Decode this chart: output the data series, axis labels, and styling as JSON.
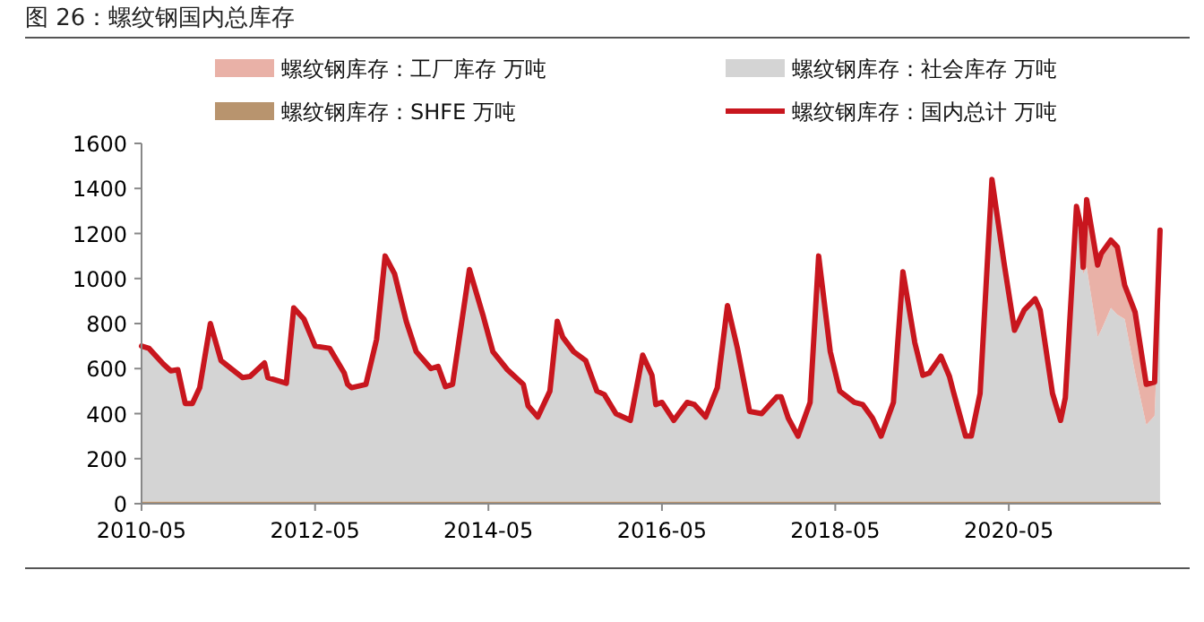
{
  "chart_data": {
    "type": "area",
    "stacked": true,
    "title": "图 26：螺纹钢国内总库存",
    "legend": "top",
    "grid": false,
    "marker": "none",
    "x": [
      "2010-05",
      "2010-06",
      "2010-08",
      "2010-09",
      "2010-10",
      "2010-11",
      "2010-12",
      "2011-01",
      "2011-02-15",
      "2011-04",
      "2011-07",
      "2011-08",
      "2011-10",
      "2011-10-15",
      "2012-01",
      "2012-02",
      "2012-03-15",
      "2012-05",
      "2012-07",
      "2012-09",
      "2012-09-15",
      "2012-10",
      "2012-12",
      "2013-01-15",
      "2013-02-20",
      "2013-04",
      "2013-05-20",
      "2013-07",
      "2013-09",
      "2013-10",
      "2013-11",
      "2013-12",
      "2014-02-10",
      "2014-04-10",
      "2014-05-20",
      "2014-07-20",
      "2014-09-25",
      "2014-10-15",
      "2014-11-25",
      "2015-01-15",
      "2015-02-15",
      "2015-03-10",
      "2015-04-25",
      "2015-06-15",
      "2015-08",
      "2015-09-01",
      "2015-10-20",
      "2015-12-20",
      "2016-02-10",
      "2016-03-20",
      "2016-04-05",
      "2016-05",
      "2016-06-20",
      "2016-08-15",
      "2016-09-15",
      "2016-11",
      "2016-12-20",
      "2017-02",
      "2017-03-15",
      "2017-05-05",
      "2017-06-25",
      "2017-08-28",
      "2017-09-15",
      "2017-10-15",
      "2017-11-25",
      "2018-01-15",
      "2018-02-20",
      "2018-04-10",
      "2018-05-20",
      "2018-07-20",
      "2018-08-25",
      "2018-10-05",
      "2018-11-10",
      "2019-01",
      "2019-02-10",
      "2019-04",
      "2019-05-05",
      "2019-06-01",
      "2019-07-20",
      "2019-08-25",
      "2019-09-10",
      "2019-11",
      "2019-11-25",
      "2020-01",
      "2020-02-20",
      "2020-04-10",
      "2020-05-25",
      "2020-07-05",
      "2020-08-20",
      "2020-09-10",
      "2020-11",
      "2020-12-05",
      "2020-12-25",
      "2021-02-10",
      "2021-03-01",
      "2021-03-10",
      "2021-03-25",
      "2021-05-10",
      "2021-05-25",
      "2021-07-05",
      "2021-08-01",
      "2021-09",
      "2021-10-15",
      "2021-12",
      "2022-01-05",
      "2022-01-28"
    ],
    "series": [
      {
        "name": "螺纹钢库存：SHFE 万吨",
        "color": "#b8946e",
        "values": [
          10,
          10,
          10,
          10,
          10,
          10,
          10,
          10,
          10,
          10,
          10,
          10,
          10,
          10,
          10,
          10,
          10,
          10,
          10,
          10,
          10,
          10,
          10,
          10,
          10,
          10,
          10,
          10,
          10,
          10,
          10,
          10,
          10,
          10,
          10,
          10,
          10,
          10,
          10,
          10,
          10,
          10,
          10,
          10,
          10,
          10,
          10,
          10,
          10,
          10,
          10,
          10,
          10,
          10,
          10,
          10,
          10,
          10,
          10,
          10,
          10,
          10,
          10,
          10,
          10,
          10,
          10,
          10,
          10,
          10,
          10,
          10,
          10,
          10,
          10,
          10,
          10,
          10,
          10,
          10,
          10,
          10,
          10,
          10,
          10,
          10,
          10,
          10,
          10,
          10,
          10,
          10,
          10,
          10,
          10,
          10,
          10,
          10,
          10,
          10,
          10,
          10,
          10,
          10,
          10,
          10
        ]
      },
      {
        "name": "螺纹钢库存：社会库存 万吨",
        "color": "#d4d4d4",
        "values": [
          690,
          680,
          610,
          580,
          585,
          435,
          435,
          505,
          790,
          625,
          550,
          555,
          615,
          550,
          525,
          860,
          810,
          690,
          680,
          570,
          520,
          505,
          520,
          720,
          1090,
          1010,
          800,
          665,
          590,
          600,
          510,
          520,
          1030,
          820,
          665,
          585,
          520,
          425,
          375,
          490,
          800,
          730,
          665,
          625,
          490,
          475,
          390,
          360,
          650,
          560,
          430,
          440,
          360,
          440,
          430,
          375,
          505,
          870,
          680,
          400,
          390,
          465,
          465,
          370,
          290,
          440,
          1090,
          665,
          490,
          440,
          430,
          370,
          290,
          440,
          1020,
          705,
          560,
          570,
          645,
          555,
          490,
          290,
          290,
          480,
          1430,
          1065,
          760,
          850,
          900,
          850,
          480,
          360,
          460,
          1310,
          1220,
          1010,
          1040,
          730,
          760,
          860,
          830,
          810,
          570,
          340,
          380,
          1005
        ]
      },
      {
        "name": "螺纹钢库存：工厂库存 万吨",
        "color": "#e9b1a7",
        "values": [
          null,
          null,
          null,
          null,
          null,
          null,
          null,
          null,
          null,
          null,
          null,
          null,
          null,
          null,
          null,
          null,
          null,
          null,
          null,
          null,
          null,
          null,
          null,
          null,
          null,
          null,
          null,
          null,
          null,
          null,
          null,
          null,
          null,
          null,
          null,
          null,
          null,
          null,
          null,
          null,
          null,
          null,
          null,
          null,
          null,
          null,
          null,
          null,
          null,
          null,
          null,
          null,
          null,
          null,
          null,
          null,
          null,
          null,
          null,
          null,
          null,
          null,
          null,
          null,
          null,
          null,
          null,
          null,
          null,
          null,
          null,
          null,
          null,
          null,
          null,
          null,
          null,
          null,
          null,
          null,
          null,
          null,
          null,
          null,
          null,
          null,
          null,
          null,
          null,
          null,
          null,
          null,
          null,
          null,
          0,
          30,
          300,
          320,
          340,
          300,
          300,
          150,
          270,
          180,
          150,
          200
        ]
      },
      {
        "name": "螺纹钢库存：国内总计 万吨",
        "type": "line",
        "color": "#c8161e",
        "line_style": "solid",
        "values": [
          700,
          690,
          620,
          590,
          595,
          445,
          445,
          515,
          800,
          635,
          560,
          565,
          625,
          560,
          535,
          870,
          820,
          700,
          690,
          580,
          530,
          515,
          530,
          730,
          1100,
          1020,
          810,
          675,
          600,
          610,
          520,
          530,
          1040,
          830,
          675,
          595,
          530,
          435,
          385,
          500,
          810,
          740,
          675,
          635,
          500,
          485,
          400,
          370,
          660,
          570,
          440,
          450,
          370,
          450,
          440,
          385,
          515,
          880,
          690,
          410,
          400,
          475,
          475,
          380,
          300,
          450,
          1100,
          675,
          500,
          450,
          440,
          380,
          300,
          450,
          1030,
          715,
          570,
          580,
          655,
          565,
          500,
          300,
          300,
          490,
          1440,
          1075,
          770,
          860,
          910,
          860,
          490,
          370,
          470,
          1320,
          1230,
          1050,
          1350,
          1060,
          1110,
          1170,
          1140,
          970,
          850,
          530,
          540,
          1215
        ]
      }
    ],
    "xlim": [
      "2010-05",
      "2022-02"
    ],
    "xticks": [
      "2010-05",
      "2012-05",
      "2014-05",
      "2016-05",
      "2018-05",
      "2020-05"
    ],
    "ylim": [
      0,
      1600
    ],
    "yticks": [
      0,
      200,
      400,
      600,
      800,
      1000,
      1200,
      1400,
      1600
    ]
  }
}
